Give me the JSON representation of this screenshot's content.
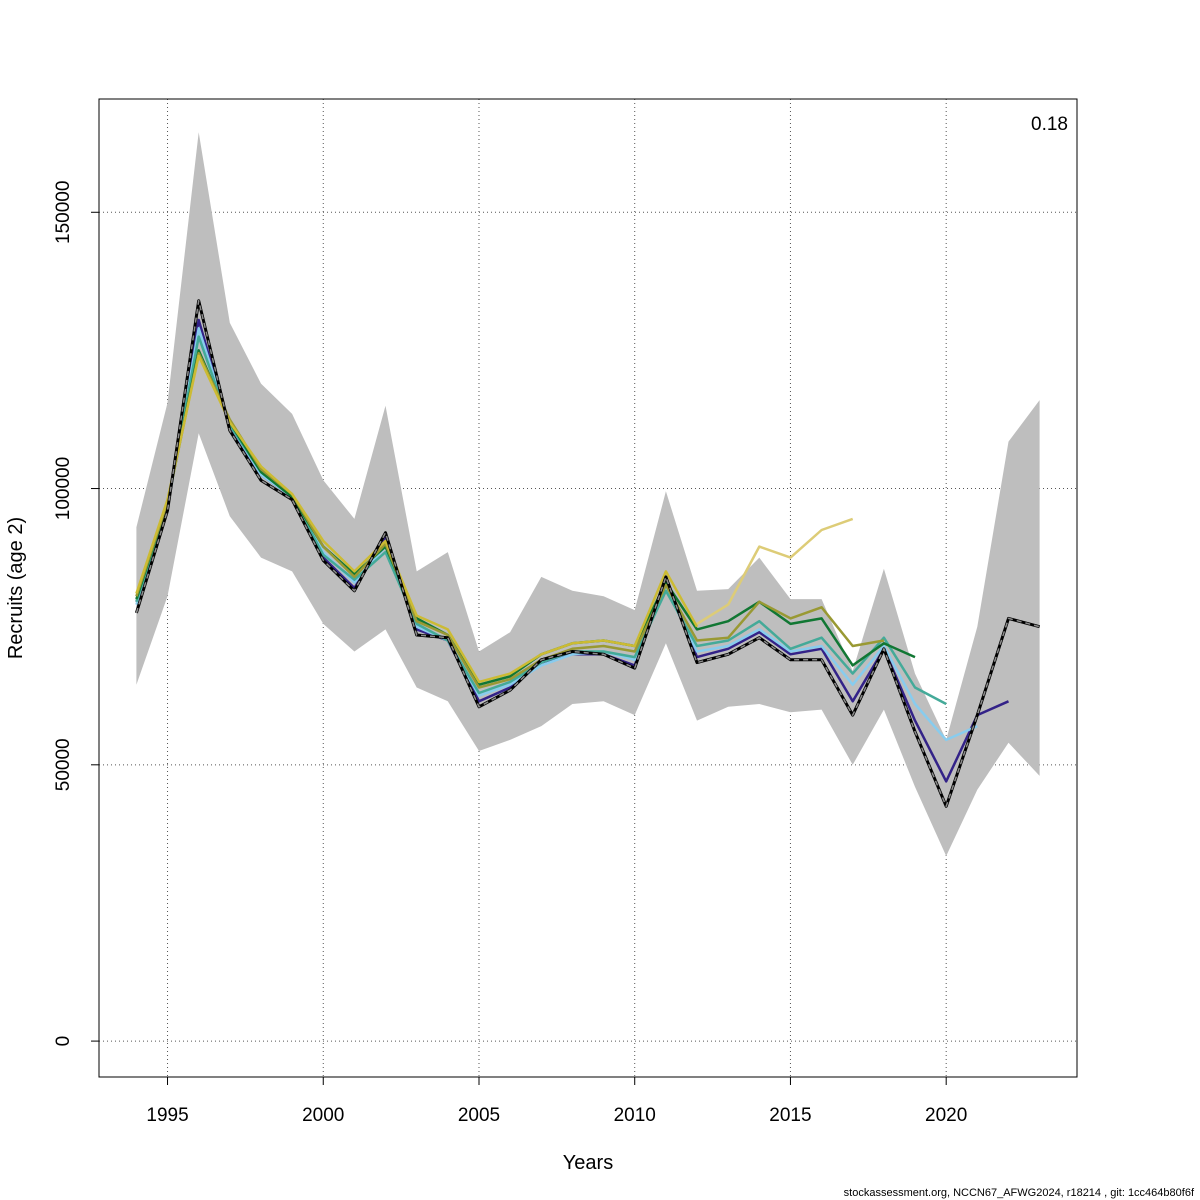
{
  "chart_data": {
    "type": "line",
    "xlabel": "Years",
    "ylabel": "Recruits (age 2)",
    "corner_label": "0.18",
    "footer": "stockassessment.org, NCCN67_AFWG2024, r18214 , git: 1cc464b80f6f",
    "xlim": [
      1992.8,
      2024.2
    ],
    "ylim": [
      -6500,
      170500
    ],
    "x_ticks": [
      1995,
      2000,
      2005,
      2010,
      2015,
      2020
    ],
    "y_ticks": [
      0,
      50000,
      100000,
      150000
    ],
    "grid": true,
    "band": {
      "x": [
        1994,
        1995,
        1996,
        1997,
        1998,
        1999,
        2000,
        2001,
        2002,
        2003,
        2004,
        2005,
        2006,
        2007,
        2008,
        2009,
        2010,
        2011,
        2012,
        2013,
        2014,
        2015,
        2016,
        2017,
        2018,
        2019,
        2020,
        2021,
        2022,
        2023
      ],
      "upper": [
        93000,
        115500,
        164500,
        130000,
        119000,
        113500,
        101500,
        94500,
        115000,
        85000,
        88500,
        70500,
        74000,
        84000,
        81500,
        80500,
        78000,
        99500,
        81500,
        81800,
        87500,
        80000,
        80000,
        67000,
        85500,
        66500,
        54500,
        75000,
        108500,
        116000
      ],
      "lower": [
        64500,
        80500,
        110000,
        95000,
        87500,
        85000,
        75500,
        70500,
        74500,
        64000,
        61500,
        52500,
        54500,
        57000,
        61000,
        61500,
        59000,
        72000,
        58000,
        60500,
        61000,
        59500,
        60000,
        50000,
        60000,
        46000,
        33500,
        45500,
        54000,
        48000
      ]
    },
    "estimate": {
      "x": [
        1994,
        1995,
        1996,
        1997,
        1998,
        1999,
        2000,
        2001,
        2002,
        2003,
        2004,
        2005,
        2006,
        2007,
        2008,
        2009,
        2010,
        2011,
        2012,
        2013,
        2014,
        2015,
        2016,
        2017,
        2018,
        2019,
        2020,
        2021,
        2022,
        2023
      ],
      "values": [
        77500,
        96000,
        134000,
        110500,
        101500,
        98000,
        87000,
        81500,
        92000,
        73500,
        73000,
        60500,
        63500,
        69000,
        70500,
        70000,
        67500,
        84000,
        68500,
        70000,
        73000,
        69000,
        69000,
        59000,
        71000,
        56000,
        42500,
        59000,
        76500,
        75000
      ]
    },
    "retro_series": [
      {
        "color": "#332288",
        "x": [
          1994,
          1995,
          1996,
          1997,
          1998,
          1999,
          2000,
          2001,
          2002,
          2003,
          2004,
          2005,
          2006,
          2007,
          2008,
          2009,
          2010,
          2011,
          2012,
          2013,
          2014,
          2015,
          2016,
          2017,
          2018,
          2019,
          2020,
          2021,
          2022
        ],
        "values": [
          79500,
          96500,
          130500,
          111000,
          102500,
          98500,
          87500,
          82000,
          91000,
          74500,
          72500,
          61500,
          64000,
          68500,
          70000,
          70000,
          68000,
          83500,
          69500,
          71000,
          74000,
          70000,
          71000,
          61500,
          71000,
          58000,
          47000,
          59000,
          61500
        ]
      },
      {
        "color": "#88CCEE",
        "x": [
          1994,
          1995,
          1996,
          1997,
          1998,
          1999,
          2000,
          2001,
          2002,
          2003,
          2004,
          2005,
          2006,
          2007,
          2008,
          2009,
          2010,
          2011,
          2012,
          2013,
          2014,
          2015,
          2016,
          2017,
          2018,
          2019,
          2020,
          2021
        ],
        "values": [
          79000,
          96500,
          129000,
          111500,
          102500,
          98500,
          88500,
          83000,
          89500,
          75000,
          72500,
          62500,
          64500,
          68000,
          70000,
          70500,
          69000,
          82000,
          70500,
          71500,
          74500,
          70500,
          71500,
          64500,
          71500,
          61000,
          54500,
          57000
        ]
      },
      {
        "color": "#44AA99",
        "x": [
          1994,
          1995,
          1996,
          1997,
          1998,
          1999,
          2000,
          2001,
          2002,
          2003,
          2004,
          2005,
          2006,
          2007,
          2008,
          2009,
          2010,
          2011,
          2012,
          2013,
          2014,
          2015,
          2016,
          2017,
          2018,
          2019,
          2020
        ],
        "values": [
          79500,
          97000,
          127500,
          111500,
          103000,
          98500,
          88000,
          83500,
          88500,
          75500,
          72500,
          63000,
          65000,
          68500,
          70500,
          70500,
          69500,
          81500,
          71500,
          72500,
          76000,
          71000,
          73000,
          66500,
          73000,
          64000,
          61000
        ]
      },
      {
        "color": "#117733",
        "x": [
          1994,
          1995,
          1996,
          1997,
          1998,
          1999,
          2000,
          2001,
          2002,
          2003,
          2004,
          2005,
          2006,
          2007,
          2008,
          2009,
          2010,
          2011,
          2012,
          2013,
          2014,
          2015,
          2016,
          2017,
          2018,
          2019
        ],
        "values": [
          80000,
          97500,
          125000,
          112000,
          103000,
          98500,
          89500,
          84500,
          89500,
          76500,
          73500,
          64500,
          66000,
          70000,
          72000,
          72500,
          71500,
          83000,
          74500,
          76000,
          79500,
          75500,
          76500,
          68000,
          72000,
          69500
        ]
      },
      {
        "color": "#999933",
        "x": [
          1994,
          1995,
          1996,
          1997,
          1998,
          1999,
          2000,
          2001,
          2002,
          2003,
          2004,
          2005,
          2006,
          2007,
          2008,
          2009,
          2010,
          2011,
          2012,
          2013,
          2014,
          2015,
          2016,
          2017,
          2018
        ],
        "values": [
          80500,
          97500,
          124500,
          112500,
          103500,
          99000,
          89500,
          84000,
          90000,
          76000,
          73500,
          64000,
          65500,
          69000,
          71000,
          71500,
          70500,
          82500,
          72500,
          73000,
          79500,
          76500,
          78500,
          71500,
          72500
        ]
      },
      {
        "color": "#DDCC77",
        "x": [
          2012,
          2013,
          2014,
          2015,
          2016,
          2017
        ],
        "values": [
          75500,
          79000,
          89500,
          87500,
          92500,
          94500
        ]
      },
      {
        "color": "#CCBB33",
        "x": [
          1994,
          1995,
          1996,
          1997,
          1998,
          1999,
          2000,
          2001,
          2002,
          2003,
          2004,
          2005,
          2006,
          2007,
          2008,
          2009,
          2010,
          2011,
          2012
        ],
        "values": [
          81000,
          98000,
          124000,
          112000,
          104000,
          99000,
          90500,
          85000,
          90500,
          77000,
          74500,
          65000,
          66500,
          70000,
          72000,
          72500,
          71500,
          85000,
          75000
        ]
      }
    ]
  }
}
